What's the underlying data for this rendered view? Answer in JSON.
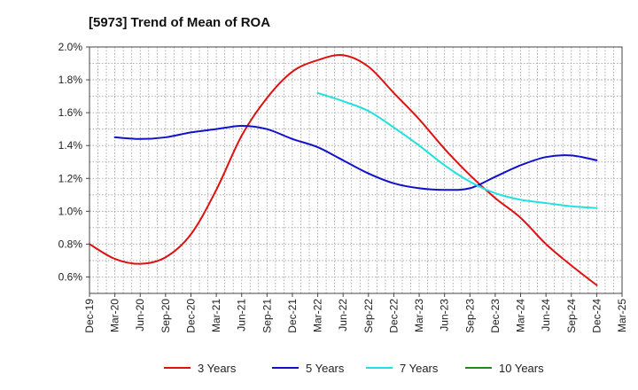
{
  "chart_data": {
    "type": "line",
    "title": "[5973]  Trend of Mean of ROA",
    "xlabel": "",
    "ylabel": "",
    "ylim": [
      0.5,
      2.0
    ],
    "y_ticks": [
      0.6,
      0.8,
      1.0,
      1.2,
      1.4,
      1.6,
      1.8,
      2.0
    ],
    "y_tick_labels": [
      "0.6%",
      "0.8%",
      "1.0%",
      "1.2%",
      "1.4%",
      "1.6%",
      "1.8%",
      "2.0%"
    ],
    "categories": [
      "Dec-19",
      "Mar-20",
      "Jun-20",
      "Sep-20",
      "Dec-20",
      "Mar-21",
      "Jun-21",
      "Sep-21",
      "Dec-21",
      "Mar-22",
      "Jun-22",
      "Sep-22",
      "Dec-22",
      "Mar-23",
      "Jun-23",
      "Sep-23",
      "Dec-23",
      "Mar-24",
      "Jun-24",
      "Sep-24",
      "Dec-24",
      "Mar-25"
    ],
    "grid": true,
    "legend_position": "bottom",
    "series": [
      {
        "name": "3 Years",
        "color": "#dd1111",
        "values": [
          0.8,
          0.71,
          0.68,
          0.72,
          0.86,
          1.13,
          1.46,
          1.69,
          1.85,
          1.92,
          1.95,
          1.88,
          1.72,
          1.56,
          1.38,
          1.22,
          1.08,
          0.96,
          0.8,
          0.67,
          0.55,
          null
        ]
      },
      {
        "name": "5 Years",
        "color": "#1111cc",
        "values": [
          null,
          1.45,
          1.44,
          1.45,
          1.48,
          1.5,
          1.52,
          1.5,
          1.44,
          1.39,
          1.31,
          1.23,
          1.17,
          1.14,
          1.13,
          1.14,
          1.21,
          1.28,
          1.33,
          1.34,
          1.31,
          null
        ]
      },
      {
        "name": "7 Years",
        "color": "#22e0e0",
        "values": [
          null,
          null,
          null,
          null,
          null,
          null,
          null,
          null,
          null,
          1.72,
          1.67,
          1.61,
          1.51,
          1.4,
          1.28,
          1.18,
          1.11,
          1.07,
          1.05,
          1.03,
          1.02,
          null
        ]
      },
      {
        "name": "10 Years",
        "color": "#228822",
        "values": [
          null,
          null,
          null,
          null,
          null,
          null,
          null,
          null,
          null,
          null,
          null,
          null,
          null,
          null,
          null,
          null,
          null,
          null,
          null,
          null,
          null,
          null
        ]
      }
    ]
  }
}
